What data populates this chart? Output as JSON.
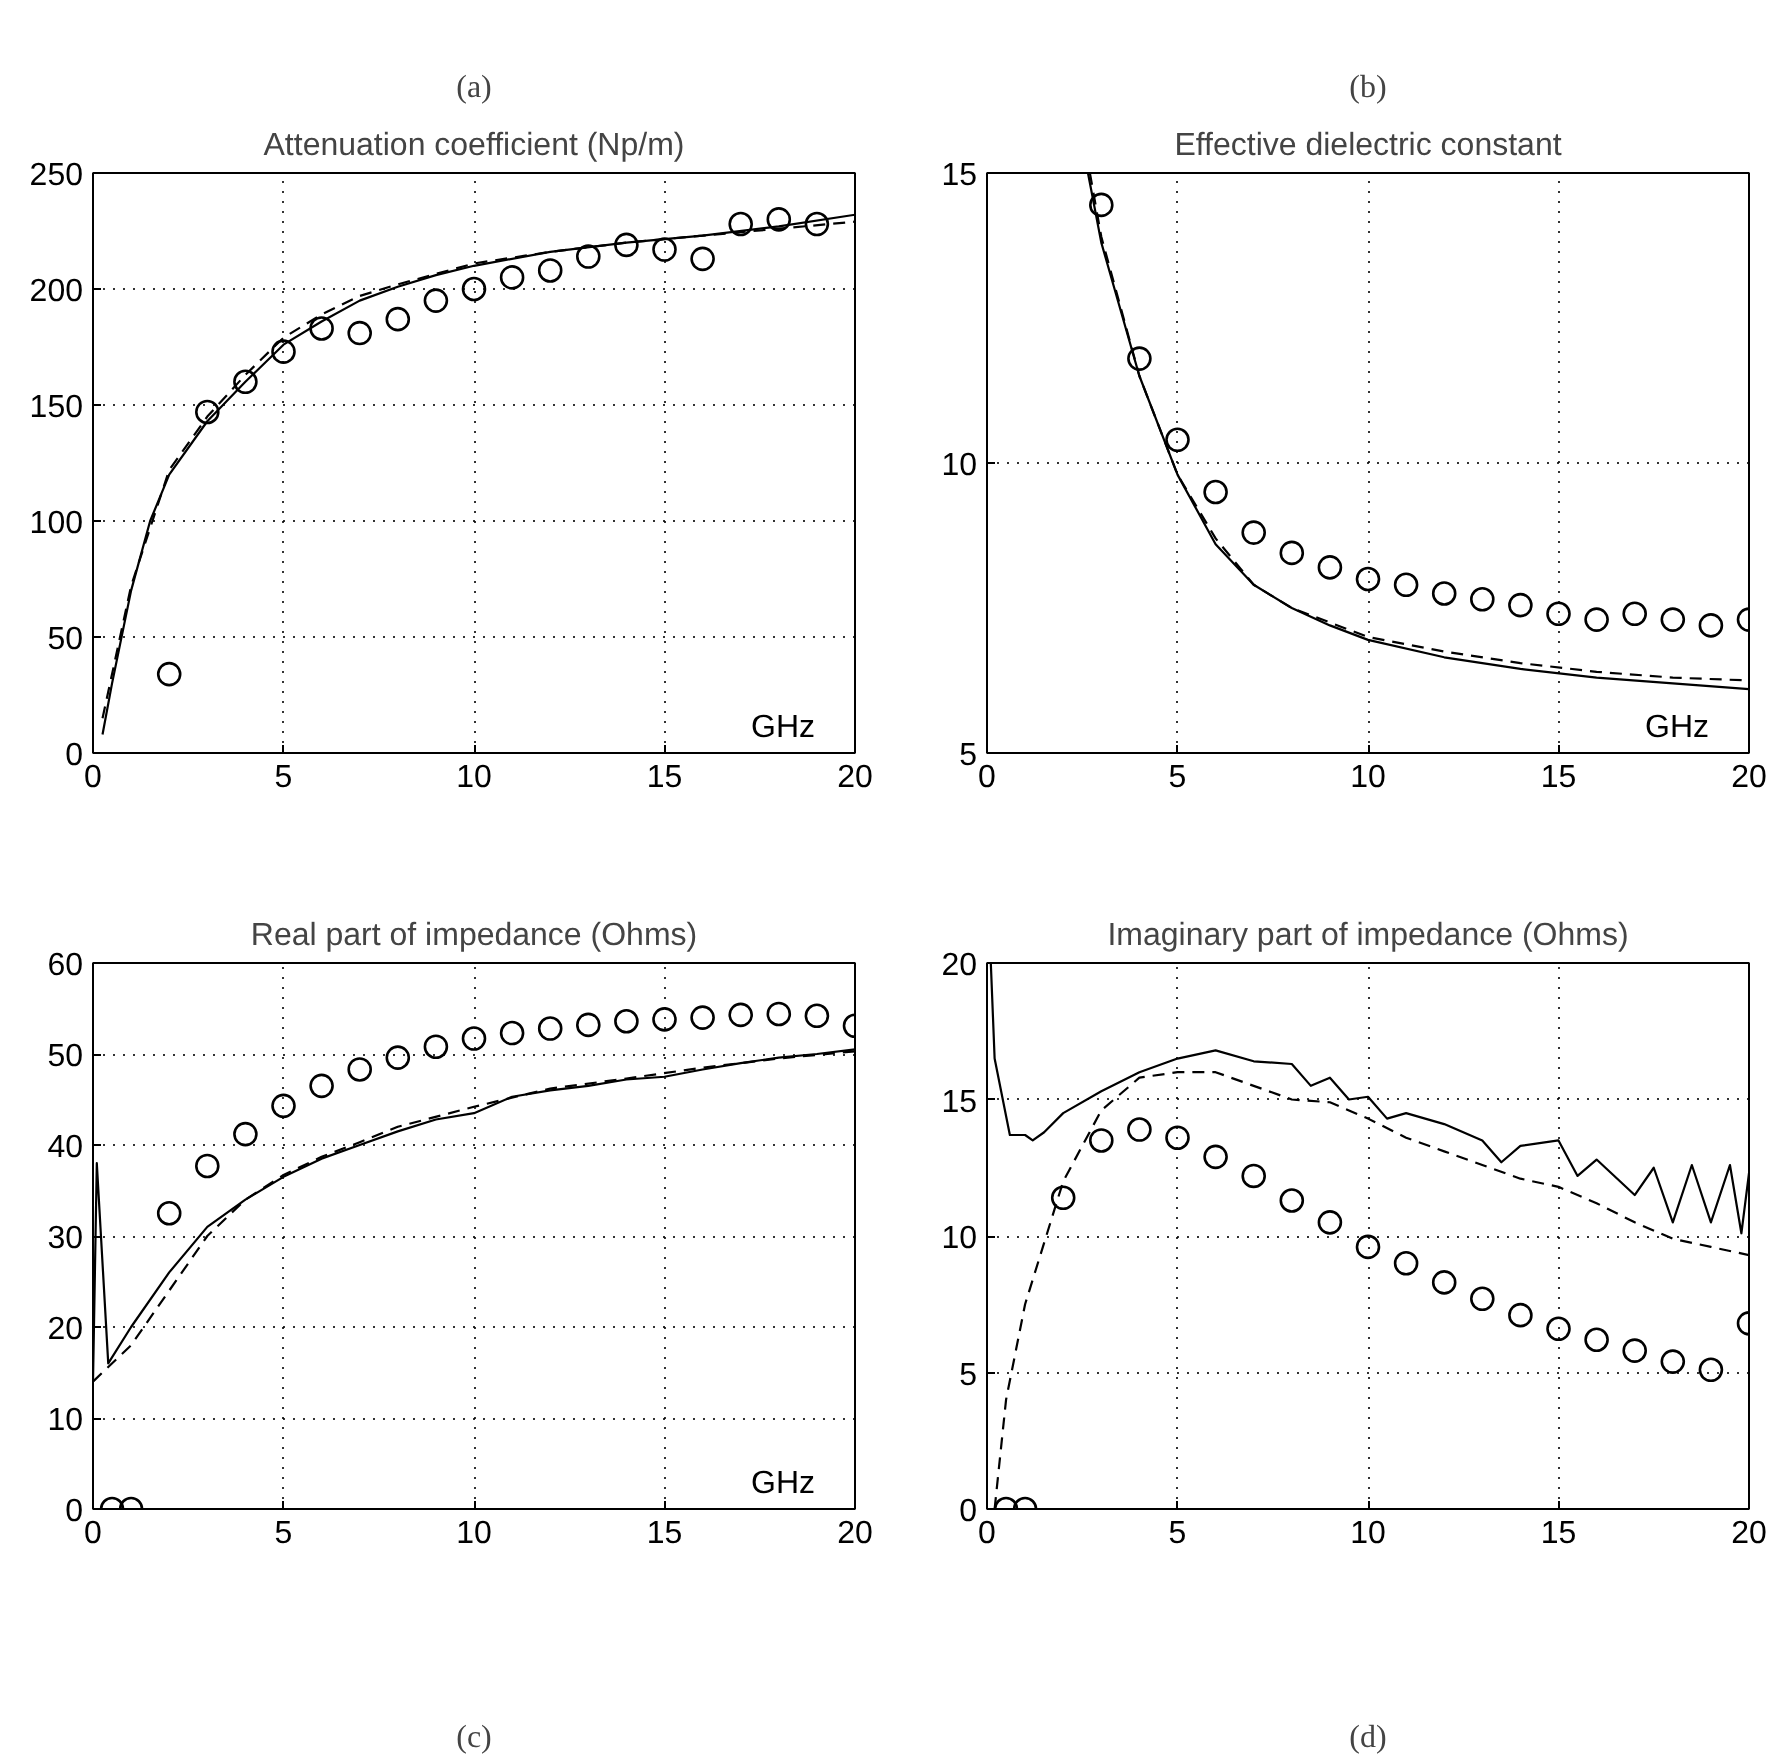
{
  "chart_data": [
    {
      "type": "line",
      "title": "Attenuation coefficient (Np/m)",
      "annotations": [
        "(a)",
        "GHz"
      ],
      "xlim": [
        0,
        20
      ],
      "xticks": [
        0,
        5,
        10,
        15,
        20
      ],
      "ylim": [
        0,
        250
      ],
      "yticks": [
        0,
        50,
        100,
        150,
        200,
        250
      ],
      "grid": true,
      "series": [
        {
          "type": "scatter",
          "marker": "circle",
          "color": "#000000",
          "x": [
            2,
            3,
            4,
            5,
            6,
            7,
            8,
            9,
            10,
            11,
            12,
            13,
            14,
            15,
            16,
            17,
            18,
            19
          ],
          "values": [
            34,
            147,
            160,
            173,
            183,
            181,
            187,
            195,
            200,
            205,
            208,
            214,
            219,
            217,
            213,
            228,
            230,
            228
          ]
        },
        {
          "line_style": "solid",
          "color": "#000000",
          "x": [
            0.25,
            0.5,
            1,
            1.5,
            2,
            3,
            4,
            5,
            6,
            7,
            8,
            9,
            10,
            12,
            14,
            16,
            18,
            20
          ],
          "values": [
            8,
            30,
            70,
            100,
            120,
            143,
            160,
            176,
            186,
            195,
            201,
            206,
            210,
            216,
            220,
            223,
            227,
            232
          ]
        },
        {
          "line_style": "dashed",
          "color": "#000000",
          "x": [
            0.25,
            1,
            2,
            3,
            4,
            5,
            6,
            7,
            8,
            10,
            12,
            14,
            16,
            18,
            20
          ],
          "values": [
            15,
            72,
            122,
            145,
            163,
            179,
            189,
            197,
            202,
            211,
            216,
            220,
            223,
            226,
            229
          ]
        }
      ]
    },
    {
      "type": "line",
      "title": "Effective dielectric constant",
      "annotations": [
        "(b)",
        "GHz"
      ],
      "xlim": [
        0,
        20
      ],
      "xticks": [
        0,
        5,
        10,
        15,
        20
      ],
      "ylim": [
        5,
        15
      ],
      "yticks": [
        5,
        10,
        15
      ],
      "grid": true,
      "series": [
        {
          "type": "scatter",
          "marker": "circle",
          "color": "#000000",
          "x": [
            3,
            4,
            5,
            6,
            7,
            8,
            9,
            10,
            11,
            12,
            13,
            14,
            15,
            16,
            17,
            18,
            19,
            20
          ],
          "values": [
            14.45,
            11.8,
            10.4,
            9.5,
            8.8,
            8.45,
            8.2,
            8.0,
            7.9,
            7.75,
            7.65,
            7.55,
            7.4,
            7.3,
            7.4,
            7.3,
            7.2,
            7.3
          ]
        },
        {
          "line_style": "solid",
          "color": "#000000",
          "x": [
            2.65,
            3,
            4,
            5,
            6,
            7,
            8,
            9,
            10,
            12,
            14,
            16,
            18,
            20
          ],
          "values": [
            15,
            13.8,
            11.5,
            9.8,
            8.6,
            7.9,
            7.5,
            7.2,
            6.95,
            6.65,
            6.45,
            6.3,
            6.2,
            6.1
          ]
        },
        {
          "line_style": "dashed",
          "color": "#000000",
          "x": [
            2.7,
            3,
            4,
            5,
            6,
            7,
            8,
            10,
            12,
            14,
            16,
            18,
            20
          ],
          "values": [
            15,
            13.9,
            11.5,
            9.8,
            8.7,
            7.9,
            7.5,
            7.0,
            6.75,
            6.55,
            6.4,
            6.3,
            6.25
          ]
        }
      ]
    },
    {
      "type": "line",
      "title": "Real part of impedance (Ohms)",
      "annotations": [
        "(c)",
        "GHz"
      ],
      "xlim": [
        0,
        20
      ],
      "xticks": [
        0,
        5,
        10,
        15,
        20
      ],
      "ylim": [
        0,
        60
      ],
      "yticks": [
        0,
        10,
        20,
        30,
        40,
        50,
        60
      ],
      "grid": true,
      "series": [
        {
          "type": "scatter",
          "marker": "circle",
          "color": "#000000",
          "x": [
            0.5,
            1,
            2,
            3,
            4,
            5,
            6,
            7,
            8,
            9,
            10,
            11,
            12,
            13,
            14,
            15,
            16,
            17,
            18,
            19,
            20
          ],
          "values": [
            0,
            0,
            32.5,
            37.7,
            41.2,
            44.3,
            46.5,
            48.3,
            49.6,
            50.8,
            51.7,
            52.3,
            52.8,
            53.2,
            53.6,
            53.8,
            54,
            54.3,
            54.4,
            54.2,
            53.1
          ]
        },
        {
          "line_style": "solid",
          "color": "#000000",
          "x": [
            0,
            0.1,
            0.4,
            1,
            2,
            3,
            4,
            5,
            6,
            7,
            8,
            9,
            10,
            11,
            12,
            13,
            14,
            15,
            16,
            17,
            18,
            19,
            20
          ],
          "values": [
            14,
            38,
            16,
            20,
            26,
            31,
            34,
            36.5,
            38.5,
            40,
            41.5,
            42.8,
            43.5,
            45.3,
            46,
            46.5,
            47.2,
            47.5,
            48.3,
            49,
            49.6,
            50,
            50.5
          ]
        },
        {
          "line_style": "dashed",
          "color": "#000000",
          "x": [
            0,
            1,
            2,
            3,
            4,
            5,
            6,
            7,
            8,
            10,
            12,
            14,
            16,
            18,
            20
          ],
          "values": [
            14,
            18,
            24,
            30,
            34,
            36.7,
            38.7,
            40.3,
            42,
            44.2,
            46.2,
            47.3,
            48.5,
            49.5,
            50.3
          ]
        }
      ]
    },
    {
      "type": "line",
      "title": "Imaginary part of impedance (Ohms)",
      "annotations": [
        "(d)"
      ],
      "xlim": [
        0,
        20
      ],
      "xticks": [
        0,
        5,
        10,
        15,
        20
      ],
      "ylim": [
        0,
        20
      ],
      "yticks": [
        0,
        5,
        10,
        15,
        20
      ],
      "grid": true,
      "series": [
        {
          "type": "scatter",
          "marker": "circle",
          "color": "#000000",
          "x": [
            0.5,
            1,
            2,
            3,
            4,
            5,
            6,
            7,
            8,
            9,
            10,
            11,
            12,
            13,
            14,
            15,
            16,
            17,
            18,
            19,
            20
          ],
          "values": [
            0,
            0,
            11.4,
            13.5,
            13.9,
            13.6,
            12.9,
            12.2,
            11.3,
            10.5,
            9.6,
            9.0,
            8.3,
            7.7,
            7.1,
            6.6,
            6.2,
            5.8,
            5.4,
            5.1,
            6.8
          ]
        },
        {
          "line_style": "solid",
          "color": "#000000",
          "x": [
            0.1,
            0.2,
            0.6,
            1,
            1.2,
            1.5,
            2,
            3,
            4,
            5,
            6,
            7,
            8,
            8.5,
            9,
            9.5,
            10,
            10.5,
            11,
            12,
            13,
            13.5,
            14,
            15,
            15.5,
            16,
            17,
            17.5,
            18,
            18.5,
            19,
            19.5,
            19.8,
            20
          ],
          "values": [
            20,
            16.5,
            13.7,
            13.7,
            13.5,
            13.8,
            14.5,
            15.3,
            16.0,
            16.5,
            16.8,
            16.4,
            16.3,
            15.5,
            15.8,
            15,
            15.1,
            14.3,
            14.5,
            14.1,
            13.5,
            12.7,
            13.3,
            13.5,
            12.2,
            12.8,
            11.5,
            12.5,
            10.5,
            12.6,
            10.5,
            12.6,
            10.1,
            12.3
          ]
        },
        {
          "line_style": "dashed",
          "color": "#000000",
          "x": [
            0.2,
            0.5,
            1,
            2,
            3,
            4,
            5,
            6,
            7,
            8,
            9,
            10,
            11,
            12,
            13,
            14,
            15,
            16,
            17,
            18,
            19,
            20
          ],
          "values": [
            0,
            4,
            7.5,
            12,
            14.6,
            15.8,
            16,
            16,
            15.5,
            15,
            14.9,
            14.3,
            13.6,
            13.1,
            12.6,
            12.1,
            11.8,
            11.2,
            10.5,
            9.9,
            9.6,
            9.3
          ]
        }
      ]
    }
  ]
}
